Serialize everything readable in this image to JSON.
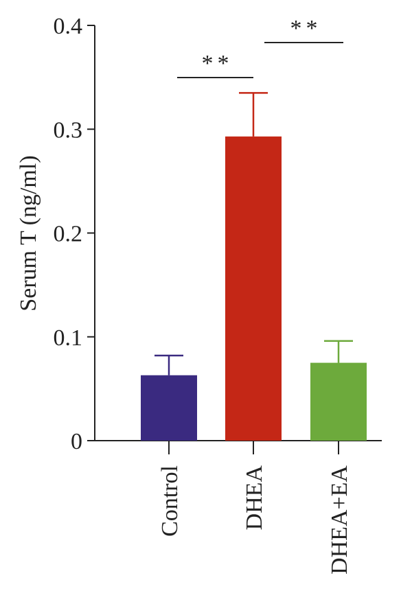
{
  "chart_data": {
    "type": "bar",
    "title": "",
    "xlabel": "",
    "ylabel": "Serum T (ng/ml)",
    "ylim": [
      0,
      0.4
    ],
    "yticks": [
      0,
      0.1,
      0.2,
      0.3,
      0.4
    ],
    "ytick_labels": [
      "0",
      "0.1",
      "0.2",
      "0.3",
      "0.4"
    ],
    "categories": [
      "Control",
      "DHEA",
      "DHEA+EA"
    ],
    "values": [
      0.063,
      0.293,
      0.075
    ],
    "errors": [
      0.019,
      0.042,
      0.021
    ],
    "colors": [
      "#3a2a80",
      "#c42716",
      "#6daa3c"
    ],
    "grid": false,
    "legend": "none",
    "significance": [
      {
        "from": 0,
        "to": 1,
        "label": "**"
      },
      {
        "from": 1,
        "to": 2,
        "label": "**"
      }
    ]
  }
}
